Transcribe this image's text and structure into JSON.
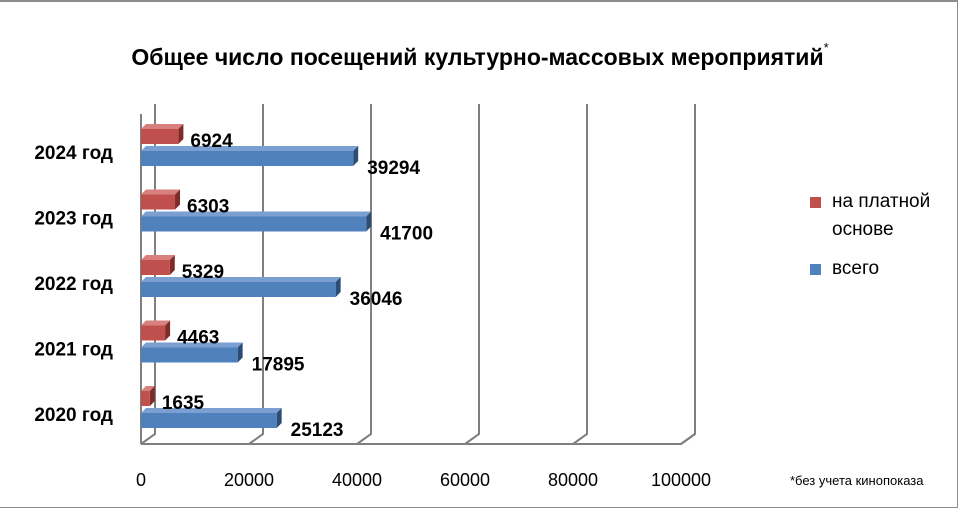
{
  "chart_data": {
    "type": "bar",
    "orientation": "horizontal",
    "title": "Общее число посещений культурно-массовых мероприятий",
    "title_marker": "*",
    "categories": [
      "2020 год",
      "2021 год",
      "2022 год",
      "2023 год",
      "2024 год"
    ],
    "series": [
      {
        "name": "всего",
        "color": "#4f81bd",
        "values": [
          25123,
          17895,
          36046,
          41700,
          39294
        ]
      },
      {
        "name": "на платной основе",
        "color": "#c0504d",
        "values": [
          1635,
          4463,
          5329,
          6303,
          6924
        ]
      }
    ],
    "xlim": [
      0,
      100000
    ],
    "x_ticks": [
      0,
      20000,
      40000,
      60000,
      80000,
      100000
    ],
    "x_tick_labels": [
      "0",
      "20000",
      "40000",
      "60000",
      "80000",
      "100000"
    ],
    "grid": true,
    "legend_position": "right",
    "footnote": "*без учета кинопоказа"
  }
}
